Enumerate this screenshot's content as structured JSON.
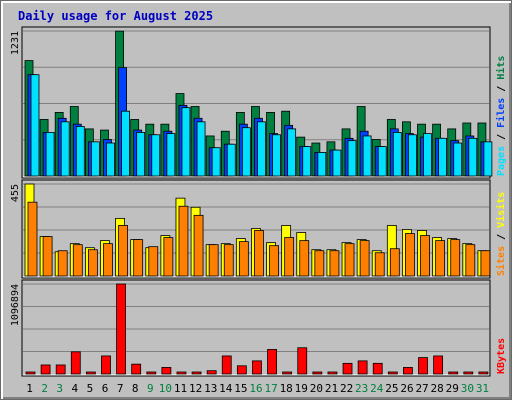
{
  "title": "Daily usage for August 2025",
  "colors": {
    "background": "#c0c0c0",
    "title": "#0000c0",
    "hits": "#008040",
    "files": "#0040ff",
    "pages": "#00e0ff",
    "visits": "#ffff00",
    "sites": "#ff8000",
    "kbytes": "#ff0000",
    "weekend_day": "#008040",
    "weekday": "#000000"
  },
  "legend": {
    "pages": "Pages",
    "files": "Files",
    "hits": "Hits",
    "sites": "Sites",
    "visits": "Visits",
    "kbytes": "KBytes",
    "sep": " / "
  },
  "chart_data": {
    "type": "bar",
    "title": "Daily usage for August 2025",
    "categories": [
      "1",
      "2",
      "3",
      "4",
      "5",
      "6",
      "7",
      "8",
      "9",
      "10",
      "11",
      "12",
      "13",
      "14",
      "15",
      "16",
      "17",
      "18",
      "19",
      "20",
      "21",
      "22",
      "23",
      "24",
      "25",
      "26",
      "27",
      "28",
      "29",
      "30",
      "31"
    ],
    "weekend_days": [
      2,
      3,
      9,
      10,
      16,
      17,
      23,
      24,
      30,
      31
    ],
    "panels": [
      {
        "name": "hits_files_pages",
        "max_label": "1231",
        "ylim": [
          0,
          1231
        ],
        "series": [
          {
            "name": "Hits",
            "values": [
              980,
              480,
              540,
              590,
              400,
              390,
              1230,
              480,
              440,
              440,
              700,
              590,
              340,
              380,
              540,
              590,
              540,
              550,
              330,
              280,
              290,
              400,
              590,
              310,
              480,
              460,
              440,
              440,
              400,
              450,
              450
            ]
          },
          {
            "name": "Files",
            "values": [
              860,
              370,
              490,
              440,
              290,
              310,
              920,
              390,
              350,
              380,
              600,
              490,
              240,
              270,
              440,
              490,
              360,
              430,
              250,
              200,
              220,
              320,
              380,
              250,
              400,
              360,
              330,
              320,
              300,
              340,
              290
            ]
          },
          {
            "name": "Pages",
            "values": [
              860,
              370,
              460,
              420,
              290,
              280,
              550,
              370,
              350,
              360,
              580,
              460,
              240,
              270,
              410,
              460,
              350,
              400,
              250,
              200,
              220,
              300,
              340,
              250,
              370,
              350,
              360,
              320,
              280,
              320,
              290
            ]
          }
        ]
      },
      {
        "name": "visits_sites",
        "max_label": "455",
        "ylim": [
          0,
          455
        ],
        "series": [
          {
            "name": "Visits",
            "values": [
              455,
              195,
              120,
              160,
              140,
              175,
              285,
              180,
              140,
              200,
              385,
              340,
              155,
              160,
              185,
              235,
              165,
              250,
              215,
              130,
              130,
              165,
              180,
              125,
              250,
              230,
              225,
              190,
              185,
              160,
              125
            ]
          },
          {
            "name": "Sites",
            "values": [
              365,
              195,
              125,
              155,
              130,
              160,
              250,
              180,
              145,
              190,
              345,
              300,
              155,
              155,
              170,
              225,
              150,
              190,
              175,
              125,
              125,
              160,
              175,
              115,
              135,
              210,
              200,
              175,
              180,
              155,
              125
            ]
          }
        ]
      },
      {
        "name": "kbytes",
        "max_label": "1096894",
        "ylim": [
          0,
          1096894
        ],
        "series": [
          {
            "name": "KBytes",
            "values": [
              0,
              110000,
              110000,
              270000,
              0,
              220000,
              1096894,
              120000,
              0,
              80000,
              0,
              0,
              40000,
              220000,
              100000,
              160000,
              300000,
              0,
              320000,
              0,
              0,
              130000,
              160000,
              130000,
              20000,
              80000,
              200000,
              220000,
              0,
              0,
              0
            ]
          }
        ]
      }
    ]
  }
}
